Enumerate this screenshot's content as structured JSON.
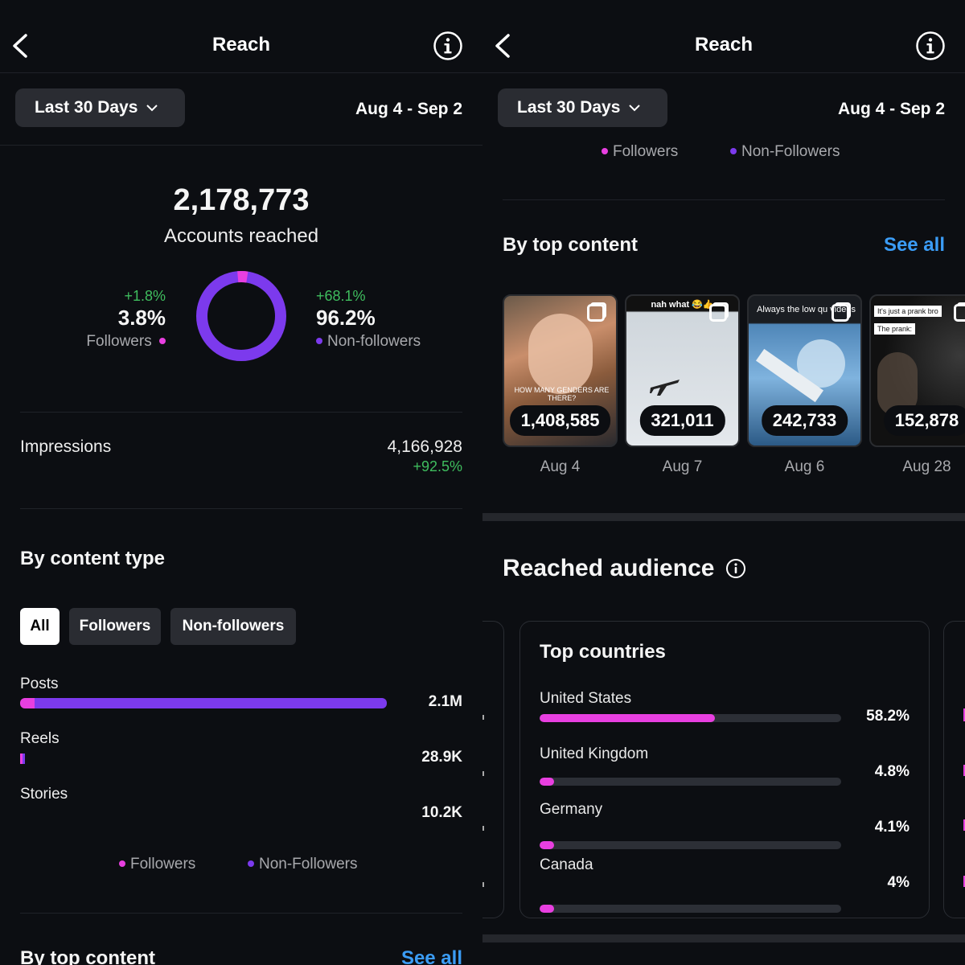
{
  "left": {
    "header": {
      "title": "Reach"
    },
    "filter": {
      "label": "Last 30 Days",
      "date_range": "Aug 4 - Sep 2"
    },
    "summary": {
      "total": "2,178,773",
      "caption": "Accounts reached",
      "followers": {
        "change": "+1.8%",
        "value": "3.8%",
        "label": "Followers",
        "share": 0.038
      },
      "non_followers": {
        "change": "+68.1%",
        "value": "96.2%",
        "label": "Non-followers",
        "share": 0.962
      }
    },
    "impressions": {
      "label": "Impressions",
      "value": "4,166,928",
      "change": "+92.5%"
    },
    "content_type": {
      "title": "By content type",
      "chips": [
        "All",
        "Followers",
        "Non-followers"
      ],
      "rows": [
        {
          "label": "Posts",
          "value": "2.1M",
          "total_fraction": 1.0,
          "followers_fraction": 0.04
        },
        {
          "label": "Reels",
          "value": "28.9K",
          "total_fraction": 0.013,
          "followers_fraction": 0.4
        },
        {
          "label": "Stories",
          "value": "10.2K",
          "total_fraction": 0.0,
          "followers_fraction": 0.0
        }
      ],
      "legend": {
        "followers": "Followers",
        "non_followers": "Non-Followers"
      }
    },
    "top_content_peek": {
      "title": "By top content",
      "see_all": "See all"
    }
  },
  "right": {
    "header": {
      "title": "Reach"
    },
    "filter": {
      "label": "Last 30 Days",
      "date_range": "Aug 4 - Sep 2"
    },
    "legend": {
      "followers": "Followers",
      "non_followers": "Non-Followers"
    },
    "top_content": {
      "title": "By top content",
      "see_all": "See all",
      "items": [
        {
          "count": "1,408,585",
          "date": "Aug 4",
          "caption": "HOW MANY GENDERS ARE THERE?"
        },
        {
          "count": "321,011",
          "date": "Aug 7",
          "caption": "nah what 😂👍"
        },
        {
          "count": "242,733",
          "date": "Aug 6",
          "caption": "Always the low qu videos"
        },
        {
          "count": "152,878",
          "date": "Aug 28",
          "caption": "It's just a prank bro",
          "caption2": "The prank:"
        }
      ]
    },
    "audience": {
      "title": "Reached audience",
      "card_title": "Top countries",
      "countries": [
        {
          "name": "United States",
          "pct": "58.2%",
          "fraction": 0.582
        },
        {
          "name": "United Kingdom",
          "pct": "4.8%",
          "fraction": 0.048
        },
        {
          "name": "Germany",
          "pct": "4.1%",
          "fraction": 0.041
        },
        {
          "name": "Canada",
          "pct": "4%",
          "fraction": 0.04
        }
      ]
    }
  },
  "colors": {
    "accent_pink": "#e83fe0",
    "accent_purple": "#7c3aed",
    "link_blue": "#3b9cf5",
    "positive_green": "#3fbd5e"
  }
}
